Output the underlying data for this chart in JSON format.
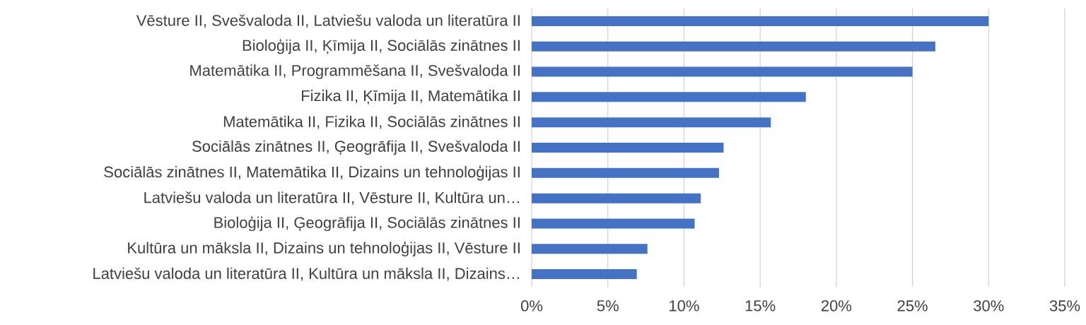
{
  "chart_data": {
    "type": "bar",
    "orientation": "horizontal",
    "categories": [
      "Vēsture II, Svešvaloda II, Latviešu valoda un literatūra II",
      "Bioloģija II, Ķīmija II, Sociālās zinātnes II",
      "Matemātika II, Programmēšana II, Svešvaloda II",
      "Fizika II, Ķīmija II, Matemātika II",
      "Matemātika II, Fizika II, Sociālās zinātnes II",
      "Sociālās zinātnes II, Ģeogrāfija II, Svešvaloda II",
      "Sociālās zinātnes II, Matemātika II, Dizains un tehnoloģijas II",
      "Latviešu valoda un literatūra II, Vēsture II, Kultūra un…",
      "Bioloģija II, Ģeogrāfija II, Sociālās zinātnes II",
      "Kultūra un māksla II, Dizains un tehnoloģijas II, Vēsture II",
      "Latviešu valoda un literatūra II, Kultūra un māksla II, Dizains…"
    ],
    "values": [
      30.0,
      26.5,
      25.0,
      18.0,
      15.7,
      12.6,
      12.3,
      11.1,
      10.7,
      7.6,
      6.9
    ],
    "color": "#4472c4",
    "xlim": [
      0,
      35
    ],
    "xticks": [
      {
        "value": 0,
        "label": "0%"
      },
      {
        "value": 5,
        "label": "5%"
      },
      {
        "value": 10,
        "label": "10%"
      },
      {
        "value": 15,
        "label": "15%"
      },
      {
        "value": 20,
        "label": "20%"
      },
      {
        "value": 25,
        "label": "25%"
      },
      {
        "value": 30,
        "label": "30%"
      },
      {
        "value": 35,
        "label": "35%"
      }
    ],
    "grid": "x"
  }
}
